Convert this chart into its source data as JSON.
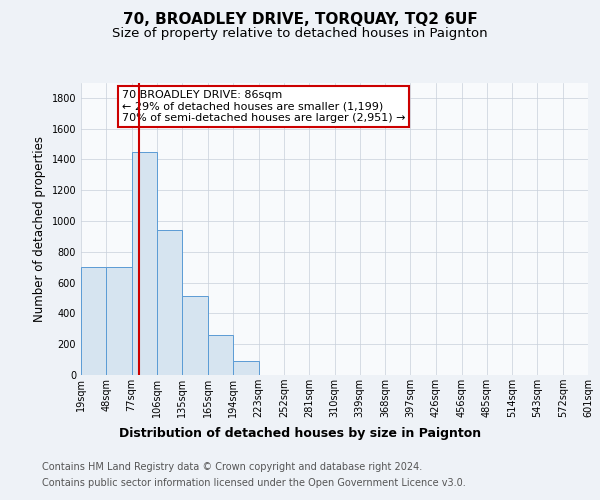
{
  "title": "70, BROADLEY DRIVE, TORQUAY, TQ2 6UF",
  "subtitle": "Size of property relative to detached houses in Paignton",
  "xlabel": "Distribution of detached houses by size in Paignton",
  "ylabel": "Number of detached properties",
  "footer_line1": "Contains HM Land Registry data © Crown copyright and database right 2024.",
  "footer_line2": "Contains public sector information licensed under the Open Government Licence v3.0.",
  "bins": [
    19,
    48,
    77,
    106,
    135,
    165,
    194,
    223,
    252,
    281,
    310,
    339,
    368,
    397,
    426,
    456,
    485,
    514,
    543,
    572,
    601
  ],
  "bin_labels": [
    "19sqm",
    "48sqm",
    "77sqm",
    "106sqm",
    "135sqm",
    "165sqm",
    "194sqm",
    "223sqm",
    "252sqm",
    "281sqm",
    "310sqm",
    "339sqm",
    "368sqm",
    "397sqm",
    "426sqm",
    "456sqm",
    "485sqm",
    "514sqm",
    "543sqm",
    "572sqm",
    "601sqm"
  ],
  "counts": [
    700,
    700,
    1450,
    940,
    510,
    260,
    90,
    0,
    0,
    0,
    0,
    0,
    0,
    0,
    0,
    0,
    0,
    0,
    0,
    0,
    0
  ],
  "bar_color": "#d6e4f0",
  "bar_edge_color": "#5b9bd5",
  "property_line_x": 86,
  "property_line_color": "#cc0000",
  "annotation_line1": "70 BROADLEY DRIVE: 86sqm",
  "annotation_line2": "← 29% of detached houses are smaller (1,199)",
  "annotation_line3": "70% of semi-detached houses are larger (2,951) →",
  "annotation_box_color": "#ffffff",
  "annotation_box_edge_color": "#cc0000",
  "ylim": [
    0,
    1900
  ],
  "yticks": [
    0,
    200,
    400,
    600,
    800,
    1000,
    1200,
    1400,
    1600,
    1800
  ],
  "background_color": "#eef2f7",
  "plot_background": "#f8fafc",
  "grid_color": "#c8d0da",
  "title_fontsize": 11,
  "subtitle_fontsize": 9.5,
  "ylabel_fontsize": 8.5,
  "xlabel_fontsize": 9,
  "tick_fontsize": 7,
  "annotation_fontsize": 8,
  "footer_fontsize": 7
}
